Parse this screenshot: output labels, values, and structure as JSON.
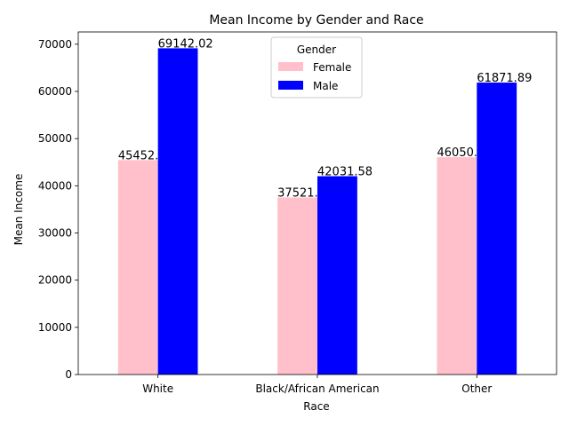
{
  "chart_data": {
    "type": "bar",
    "title": "Mean Income by Gender and Race",
    "xlabel": "Race",
    "ylabel": "Mean Income",
    "categories": [
      "White",
      "Black/African American",
      "Other"
    ],
    "series": [
      {
        "name": "Female",
        "color": "#ffc0cb",
        "values": [
          45452.09,
          37521.77,
          46050.16
        ]
      },
      {
        "name": "Male",
        "color": "#0000ff",
        "values": [
          69142.02,
          42031.58,
          61871.89
        ]
      }
    ],
    "ylim": [
      0,
      72600
    ],
    "yticks": [
      0,
      10000,
      20000,
      30000,
      40000,
      50000,
      60000,
      70000
    ],
    "grid": false,
    "legend": {
      "title": "Gender",
      "placement": "top-center"
    }
  }
}
